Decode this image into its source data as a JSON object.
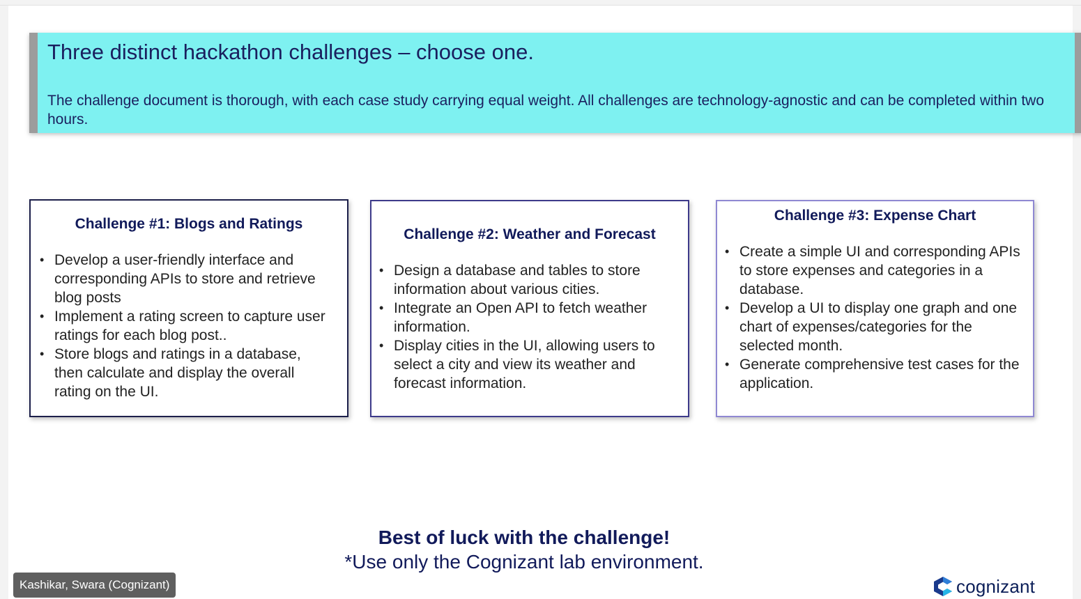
{
  "banner": {
    "title": "Three distinct hackathon challenges – choose one.",
    "body": "The challenge document is thorough, with each case study carrying equal weight. All challenges are technology-agnostic and can be completed within two hours."
  },
  "challenges": [
    {
      "title": "Challenge #1: Blogs and Ratings",
      "points": [
        "Develop a user-friendly interface and corresponding APIs to store and retrieve blog posts",
        "Implement a rating screen to capture user ratings for each blog post..",
        "Store blogs and ratings in a database, then calculate and display the overall rating on the UI."
      ]
    },
    {
      "title": "Challenge #2: Weather and Forecast",
      "points": [
        "Design a database and tables to store information about various cities.",
        "Integrate an Open API to fetch weather information.",
        "Display cities in the UI, allowing users to select a city and view its weather and forecast information."
      ]
    },
    {
      "title": "Challenge #3: Expense Chart",
      "points": [
        "Create a simple UI and corresponding APIs to store expenses and categories in a database.",
        "Develop a UI to display one graph and one chart of expenses/categories for the selected month.",
        "Generate comprehensive test cases for the application."
      ]
    }
  ],
  "closing": {
    "title": "Best of luck with the challenge!",
    "note": "*Use only the Cognizant lab environment."
  },
  "logo": {
    "text": "cognizant",
    "icon": "cognizant-logo-icon"
  },
  "participant": {
    "name": "Kashikar, Swara (Cognizant)"
  }
}
